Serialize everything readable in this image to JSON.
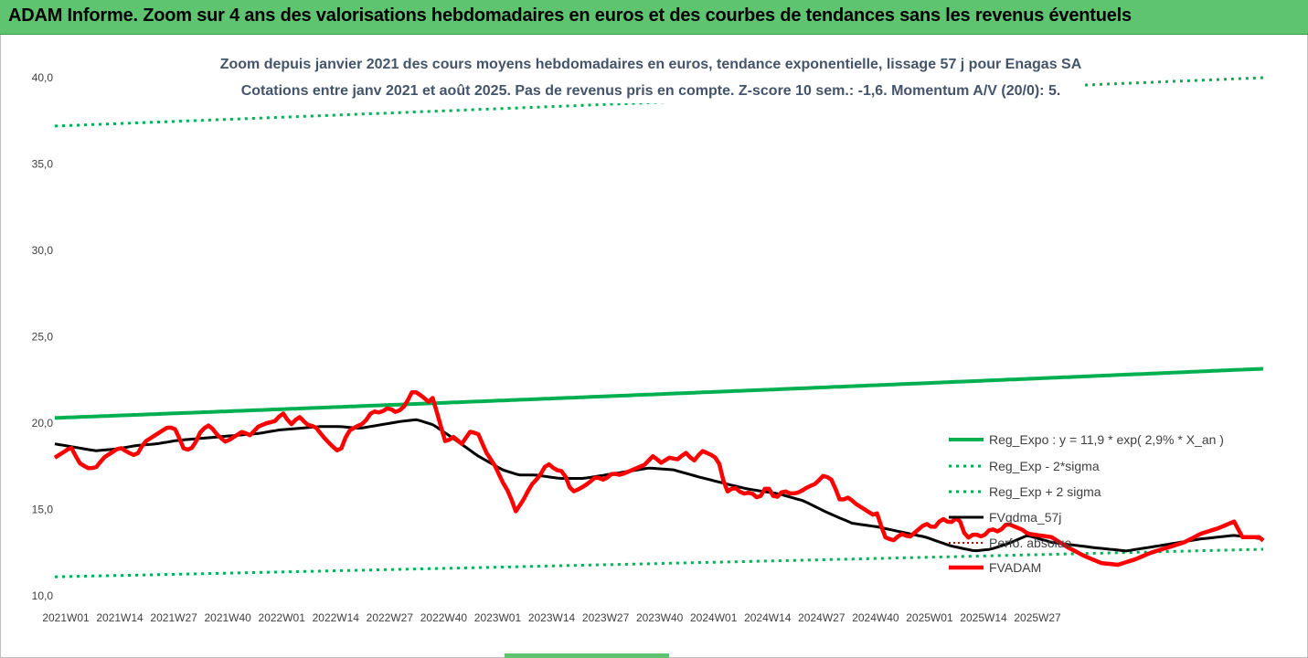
{
  "header": {
    "title": "ADAM Informe. Zoom sur 4 ans des valorisations hebdomadaires en euros et des courbes de tendances sans les revenus éventuels"
  },
  "colors": {
    "header_bg": "#5fc46f",
    "trend_green": "#00b050",
    "fv_adam_red": "#ff0000",
    "fv_gdma_black": "#000000",
    "perfo_red": "#c00000"
  },
  "chart_data": {
    "type": "line",
    "title": "Zoom depuis janvier 2021 des cours moyens hebdomadaires en euros, tendance exponentielle, lissage 57 j pour Enagas SA",
    "subtitle": "Cotations entre janv 2021 et août 2025. Pas de revenus pris en compte. Z-score 10 sem.: -1,6. Momentum A/V (20/0): 5.",
    "xlabel": "",
    "ylabel": "",
    "ylim": [
      10,
      40
    ],
    "yticks": [
      "10,0",
      "15,0",
      "20,0",
      "25,0",
      "30,0",
      "35,0",
      "40,0"
    ],
    "x_ticks": [
      "2021W01",
      "2021W14",
      "2021W27",
      "2021W40",
      "2022W01",
      "2022W14",
      "2022W27",
      "2022W40",
      "2023W01",
      "2023W14",
      "2023W27",
      "2023W40",
      "2024W01",
      "2024W14",
      "2024W27",
      "2024W40",
      "2025W01",
      "2025W14",
      "2025W27"
    ],
    "x_count": 240,
    "grid": false,
    "legend_position": "right",
    "series": [
      {
        "name": "Reg_Expo : y = 11,9 * exp( 2,9% * X_an )",
        "style": "solid-green-thick",
        "color": "#00b050",
        "anchors": [
          [
            0,
            20.3
          ],
          [
            239,
            23.15
          ]
        ]
      },
      {
        "name": "Reg_Exp - 2*sigma",
        "style": "dotted-green",
        "color": "#00b050",
        "anchors": [
          [
            0,
            11.1
          ],
          [
            239,
            12.7
          ]
        ]
      },
      {
        "name": "Reg_Exp + 2 sigma",
        "style": "dotted-green",
        "color": "#00b050",
        "anchors": [
          [
            0,
            37.2
          ],
          [
            239,
            40.0
          ]
        ]
      },
      {
        "name": "FVgdma_57j",
        "style": "solid-black",
        "color": "#000000",
        "anchors": [
          [
            0,
            18.8
          ],
          [
            5,
            18.6
          ],
          [
            10,
            18.4
          ],
          [
            15,
            18.5
          ],
          [
            20,
            18.7
          ],
          [
            25,
            18.8
          ],
          [
            30,
            19.0
          ],
          [
            35,
            19.1
          ],
          [
            40,
            19.2
          ],
          [
            45,
            19.3
          ],
          [
            50,
            19.4
          ],
          [
            55,
            19.6
          ],
          [
            60,
            19.7
          ],
          [
            65,
            19.8
          ],
          [
            70,
            19.8
          ],
          [
            75,
            19.7
          ],
          [
            80,
            19.9
          ],
          [
            85,
            20.1
          ],
          [
            89,
            20.2
          ],
          [
            93,
            19.9
          ],
          [
            98,
            19.1
          ],
          [
            104,
            18.1
          ],
          [
            110,
            17.3
          ],
          [
            114,
            17.0
          ],
          [
            118,
            17.0
          ],
          [
            124,
            16.8
          ],
          [
            130,
            16.8
          ],
          [
            138,
            17.1
          ],
          [
            146,
            17.4
          ],
          [
            152,
            17.3
          ],
          [
            158,
            16.9
          ],
          [
            163,
            16.6
          ],
          [
            170,
            16.2
          ],
          [
            178,
            15.9
          ],
          [
            184,
            15.5
          ],
          [
            190,
            14.8
          ],
          [
            196,
            14.2
          ],
          [
            202,
            14.0
          ],
          [
            208,
            13.7
          ],
          [
            214,
            13.4
          ],
          [
            220,
            12.9
          ],
          [
            226,
            12.6
          ],
          [
            230,
            12.7
          ],
          [
            234,
            13.0
          ],
          [
            239,
            13.5
          ]
        ]
      },
      {
        "name": "Perfo. absolue",
        "style": "dotted-red",
        "color": "#c00000",
        "anchors": []
      },
      {
        "name": "FVADAM",
        "style": "solid-red-thick",
        "color": "#ff0000",
        "anchors": [
          [
            0,
            18.0
          ],
          [
            2,
            18.3
          ],
          [
            4,
            18.6
          ],
          [
            6,
            17.7
          ],
          [
            8,
            17.4
          ],
          [
            10,
            17.4
          ],
          [
            12,
            18.0
          ],
          [
            14,
            18.3
          ],
          [
            16,
            18.6
          ],
          [
            18,
            18.3
          ],
          [
            20,
            18.1
          ],
          [
            22,
            18.9
          ],
          [
            24,
            19.2
          ],
          [
            26,
            19.5
          ],
          [
            28,
            19.8
          ],
          [
            30,
            19.6
          ],
          [
            31,
            18.8
          ],
          [
            32,
            18.4
          ],
          [
            34,
            18.6
          ],
          [
            36,
            19.6
          ],
          [
            38,
            19.9
          ],
          [
            40,
            19.3
          ],
          [
            42,
            18.9
          ],
          [
            44,
            19.2
          ],
          [
            46,
            19.5
          ],
          [
            48,
            19.3
          ],
          [
            50,
            19.8
          ],
          [
            52,
            20.0
          ],
          [
            54,
            20.1
          ],
          [
            56,
            20.6
          ],
          [
            58,
            19.9
          ],
          [
            60,
            20.4
          ],
          [
            62,
            19.9
          ],
          [
            64,
            19.8
          ],
          [
            66,
            19.2
          ],
          [
            68,
            18.7
          ],
          [
            70,
            18.3
          ],
          [
            72,
            19.5
          ],
          [
            74,
            19.8
          ],
          [
            76,
            20.0
          ],
          [
            78,
            20.7
          ],
          [
            80,
            20.6
          ],
          [
            82,
            20.9
          ],
          [
            84,
            20.6
          ],
          [
            86,
            21.0
          ],
          [
            88,
            21.9
          ],
          [
            90,
            21.6
          ],
          [
            92,
            21.2
          ],
          [
            93,
            21.5
          ],
          [
            94,
            20.5
          ],
          [
            96,
            18.9
          ],
          [
            98,
            19.2
          ],
          [
            100,
            18.8
          ],
          [
            102,
            19.5
          ],
          [
            104,
            19.4
          ],
          [
            106,
            18.3
          ],
          [
            108,
            17.6
          ],
          [
            110,
            16.6
          ],
          [
            112,
            15.8
          ],
          [
            113,
            14.8
          ],
          [
            115,
            15.5
          ],
          [
            117,
            16.4
          ],
          [
            119,
            16.9
          ],
          [
            121,
            17.7
          ],
          [
            123,
            17.3
          ],
          [
            125,
            17.2
          ],
          [
            127,
            16.0
          ],
          [
            129,
            16.2
          ],
          [
            131,
            16.5
          ],
          [
            133,
            16.9
          ],
          [
            135,
            16.7
          ],
          [
            137,
            17.1
          ],
          [
            139,
            17.0
          ],
          [
            141,
            17.2
          ],
          [
            143,
            17.4
          ],
          [
            145,
            17.6
          ],
          [
            147,
            18.1
          ],
          [
            149,
            17.7
          ],
          [
            151,
            18.0
          ],
          [
            153,
            17.9
          ],
          [
            155,
            18.3
          ],
          [
            157,
            17.8
          ],
          [
            159,
            18.4
          ],
          [
            161,
            18.2
          ],
          [
            163,
            17.9
          ],
          [
            165,
            16.0
          ],
          [
            167,
            16.3
          ],
          [
            169,
            15.9
          ],
          [
            171,
            16.0
          ],
          [
            173,
            15.6
          ],
          [
            175,
            16.4
          ],
          [
            177,
            15.6
          ],
          [
            179,
            16.1
          ],
          [
            181,
            15.9
          ],
          [
            183,
            16.0
          ],
          [
            185,
            16.3
          ],
          [
            187,
            16.5
          ],
          [
            189,
            17.0
          ],
          [
            191,
            16.7
          ],
          [
            193,
            15.5
          ],
          [
            195,
            15.7
          ],
          [
            197,
            15.3
          ],
          [
            199,
            15.0
          ],
          [
            201,
            14.7
          ],
          [
            202,
            14.8
          ],
          [
            204,
            13.4
          ],
          [
            206,
            13.2
          ],
          [
            208,
            13.6
          ],
          [
            210,
            13.4
          ],
          [
            212,
            13.8
          ],
          [
            214,
            14.2
          ],
          [
            216,
            13.9
          ],
          [
            218,
            14.5
          ],
          [
            220,
            14.2
          ],
          [
            222,
            14.6
          ],
          [
            224,
            13.3
          ],
          [
            226,
            13.6
          ],
          [
            228,
            13.4
          ],
          [
            230,
            13.9
          ],
          [
            232,
            13.7
          ],
          [
            234,
            14.2
          ],
          [
            236,
            14.0
          ],
          [
            238,
            13.8
          ],
          [
            239,
            13.6
          ]
        ]
      }
    ],
    "x_value_map": "anchors are [week_index_from_2021W01, value_eur]",
    "fvadam_tail_anchors": [
      [
        240,
        13.4
      ],
      [
        244,
        12.8
      ],
      [
        248,
        12.3
      ],
      [
        252,
        11.9
      ],
      [
        256,
        11.8
      ],
      [
        260,
        12.1
      ],
      [
        264,
        12.5
      ],
      [
        268,
        12.8
      ],
      [
        272,
        13.1
      ],
      [
        276,
        13.6
      ],
      [
        280,
        13.9
      ],
      [
        284,
        14.3
      ],
      [
        286,
        13.4
      ],
      [
        290,
        13.4
      ],
      [
        292,
        13.2
      ]
    ]
  }
}
